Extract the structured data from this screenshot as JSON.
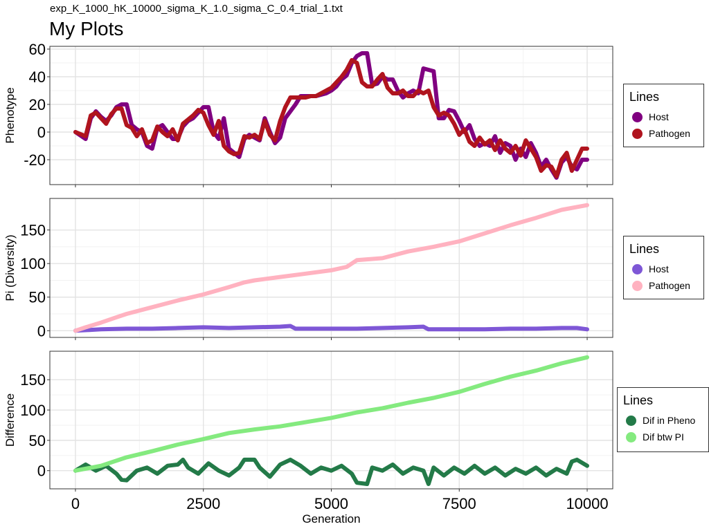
{
  "header": {
    "subtitle": "exp_K_1000_hK_10000_sigma_K_1.0_sigma_C_0.4_trial_1.txt",
    "title": "My Plots"
  },
  "chart_data": [
    {
      "type": "line",
      "ylabel": "Phenotype",
      "xlim": [
        -500,
        10500
      ],
      "ylim": [
        -38,
        62
      ],
      "yticks": [
        -20,
        0,
        20,
        40,
        60
      ],
      "ytick_labels": [
        "-20",
        "0",
        "20",
        "40",
        "60"
      ],
      "xticks": [
        0,
        2500,
        5000,
        7500,
        10000
      ],
      "grid": true,
      "legend": {
        "title": "Lines",
        "position": "right"
      },
      "series": [
        {
          "name": "Host",
          "color": "#800080",
          "x": [
            0,
            200,
            300,
            400,
            500,
            600,
            700,
            800,
            900,
            1000,
            1100,
            1200,
            1300,
            1400,
            1500,
            1600,
            1700,
            1800,
            1900,
            2000,
            2100,
            2200,
            2300,
            2400,
            2500,
            2600,
            2700,
            2800,
            2900,
            3000,
            3100,
            3200,
            3300,
            3400,
            3500,
            3600,
            3700,
            3800,
            3900,
            4000,
            4100,
            4200,
            4300,
            4400,
            4500,
            4600,
            4700,
            4800,
            4900,
            5000,
            5100,
            5200,
            5300,
            5400,
            5500,
            5600,
            5700,
            5800,
            5900,
            6000,
            6100,
            6200,
            6300,
            6400,
            6500,
            6600,
            6700,
            6800,
            6900,
            7000,
            7100,
            7200,
            7300,
            7400,
            7500,
            7600,
            7700,
            7800,
            7900,
            8000,
            8100,
            8200,
            8300,
            8400,
            8500,
            8600,
            8700,
            8800,
            8900,
            9000,
            9100,
            9200,
            9300,
            9400,
            9500,
            9600,
            9700,
            9800,
            9900,
            10000
          ],
          "y": [
            0,
            -5,
            10,
            15,
            11,
            8,
            12,
            18,
            20,
            20,
            5,
            2,
            0,
            -10,
            -12,
            3,
            5,
            0,
            -5,
            -5,
            4,
            8,
            10,
            14,
            18,
            18,
            0,
            -5,
            10,
            -12,
            -15,
            -18,
            -5,
            -2,
            -4,
            -6,
            10,
            0,
            -8,
            -4,
            10,
            15,
            20,
            26,
            26,
            26,
            26,
            27,
            28,
            30,
            33,
            38,
            41,
            50,
            55,
            57,
            57,
            34,
            35,
            40,
            38,
            38,
            30,
            25,
            28,
            30,
            28,
            46,
            45,
            44,
            10,
            10,
            16,
            15,
            8,
            0,
            5,
            -5,
            -10,
            -8,
            -10,
            -3,
            -15,
            -8,
            -10,
            -20,
            -12,
            -18,
            -8,
            -15,
            -25,
            -20,
            -27,
            -33,
            -22,
            -18,
            -25,
            -27,
            -20,
            -20
          ]
        },
        {
          "name": "Pathogen",
          "color": "#b0141e",
          "x": [
            0,
            200,
            300,
            400,
            500,
            600,
            700,
            800,
            900,
            1000,
            1100,
            1200,
            1300,
            1400,
            1500,
            1600,
            1700,
            1800,
            1900,
            2000,
            2100,
            2200,
            2300,
            2400,
            2500,
            2600,
            2700,
            2800,
            2900,
            3000,
            3100,
            3200,
            3300,
            3400,
            3500,
            3600,
            3700,
            3800,
            3900,
            4000,
            4100,
            4200,
            4300,
            4400,
            4500,
            4600,
            4700,
            4800,
            4900,
            5000,
            5100,
            5200,
            5300,
            5400,
            5500,
            5600,
            5700,
            5800,
            5900,
            6000,
            6100,
            6200,
            6300,
            6400,
            6500,
            6600,
            6700,
            6800,
            6900,
            7000,
            7100,
            7200,
            7300,
            7400,
            7500,
            7600,
            7700,
            7800,
            7900,
            8000,
            8100,
            8200,
            8300,
            8400,
            8500,
            8600,
            8700,
            8800,
            8900,
            9000,
            9100,
            9200,
            9300,
            9400,
            9500,
            9600,
            9700,
            9800,
            9900,
            10000
          ],
          "y": [
            0,
            -3,
            12,
            14,
            10,
            6,
            13,
            17,
            17,
            5,
            3,
            -3,
            2,
            -8,
            -6,
            4,
            0,
            -3,
            2,
            -6,
            6,
            9,
            12,
            16,
            14,
            5,
            -2,
            8,
            -10,
            -14,
            -16,
            -15,
            -3,
            -4,
            -2,
            -5,
            8,
            -2,
            -6,
            8,
            18,
            25,
            25,
            25,
            25,
            26,
            26,
            28,
            30,
            32,
            36,
            40,
            45,
            52,
            50,
            36,
            33,
            33,
            38,
            42,
            32,
            28,
            28,
            30,
            26,
            26,
            30,
            28,
            30,
            18,
            12,
            14,
            12,
            6,
            -2,
            2,
            -7,
            -10,
            -4,
            -9,
            -6,
            -13,
            -6,
            -12,
            -15,
            -10,
            -17,
            -6,
            -12,
            -18,
            -28,
            -24,
            -25,
            -32,
            -20,
            -15,
            -28,
            -20,
            -12,
            -12
          ]
        }
      ]
    },
    {
      "type": "line",
      "ylabel": "Pi (Diversity)",
      "xlim": [
        -500,
        10500
      ],
      "ylim": [
        -10,
        197
      ],
      "yticks": [
        0,
        50,
        100,
        150
      ],
      "ytick_labels": [
        "0",
        "50",
        "100",
        "150"
      ],
      "xticks": [
        0,
        2500,
        5000,
        7500,
        10000
      ],
      "grid": true,
      "legend": {
        "title": "Lines",
        "position": "right"
      },
      "series": [
        {
          "name": "Host",
          "color": "#7e57d6",
          "x": [
            0,
            500,
            1000,
            1500,
            2000,
            2500,
            3000,
            3500,
            4000,
            4200,
            4300,
            5000,
            5500,
            6000,
            6500,
            6800,
            6900,
            7500,
            8000,
            8500,
            9000,
            9500,
            9800,
            10000
          ],
          "y": [
            0,
            2,
            3,
            3,
            4,
            5,
            4,
            5,
            6,
            7,
            3,
            3,
            3,
            4,
            5,
            6,
            2,
            2,
            2,
            3,
            3,
            4,
            4,
            2
          ]
        },
        {
          "name": "Pathogen",
          "color": "#ffb2c0",
          "x": [
            0,
            200,
            500,
            800,
            1000,
            1500,
            2000,
            2500,
            3000,
            3300,
            3500,
            4000,
            4500,
            5000,
            5300,
            5500,
            6000,
            6500,
            7000,
            7500,
            8000,
            8500,
            9000,
            9500,
            10000
          ],
          "y": [
            0,
            5,
            12,
            20,
            25,
            35,
            45,
            54,
            65,
            72,
            75,
            80,
            85,
            90,
            95,
            105,
            108,
            118,
            125,
            133,
            145,
            157,
            168,
            180,
            187
          ]
        }
      ]
    },
    {
      "type": "line",
      "ylabel": "Difference",
      "xlabel": "Generation",
      "xlim": [
        -500,
        10500
      ],
      "ylim": [
        -30,
        197
      ],
      "yticks": [
        0,
        50,
        100,
        150
      ],
      "ytick_labels": [
        "0",
        "50",
        "100",
        "150"
      ],
      "xticks": [
        0,
        2500,
        5000,
        7500,
        10000
      ],
      "xtick_labels": [
        "0",
        "2500",
        "5000",
        "7500",
        "10000"
      ],
      "grid": true,
      "legend": {
        "title": "Lines",
        "position": "right"
      },
      "series": [
        {
          "name": "Dif in Pheno",
          "color": "#237a48",
          "x": [
            0,
            200,
            400,
            600,
            800,
            900,
            1000,
            1200,
            1400,
            1600,
            1800,
            2000,
            2100,
            2200,
            2400,
            2600,
            2800,
            3000,
            3200,
            3300,
            3500,
            3600,
            3800,
            4000,
            4200,
            4400,
            4600,
            4800,
            5000,
            5200,
            5400,
            5500,
            5700,
            5800,
            6000,
            6200,
            6400,
            6600,
            6800,
            6900,
            7000,
            7200,
            7400,
            7600,
            7800,
            8000,
            8200,
            8400,
            8600,
            8800,
            9000,
            9200,
            9400,
            9600,
            9700,
            9800,
            10000
          ],
          "y": [
            0,
            10,
            0,
            8,
            -5,
            -15,
            -16,
            0,
            5,
            -5,
            8,
            10,
            18,
            5,
            -5,
            12,
            0,
            -8,
            5,
            18,
            18,
            5,
            -10,
            10,
            18,
            8,
            -5,
            5,
            0,
            8,
            -5,
            -20,
            -22,
            5,
            0,
            10,
            -5,
            5,
            0,
            -22,
            5,
            -8,
            5,
            -5,
            8,
            -5,
            5,
            -8,
            3,
            -5,
            5,
            -8,
            3,
            -5,
            15,
            18,
            8
          ]
        },
        {
          "name": "Dif btw PI",
          "color": "#84ea7f",
          "x": [
            0,
            500,
            1000,
            1500,
            2000,
            2500,
            3000,
            3500,
            4000,
            4500,
            5000,
            5500,
            6000,
            6500,
            7000,
            7500,
            8000,
            8500,
            9000,
            9500,
            10000
          ],
          "y": [
            0,
            8,
            22,
            32,
            43,
            52,
            62,
            68,
            73,
            80,
            87,
            96,
            103,
            112,
            120,
            130,
            143,
            155,
            165,
            177,
            187
          ]
        }
      ]
    }
  ]
}
